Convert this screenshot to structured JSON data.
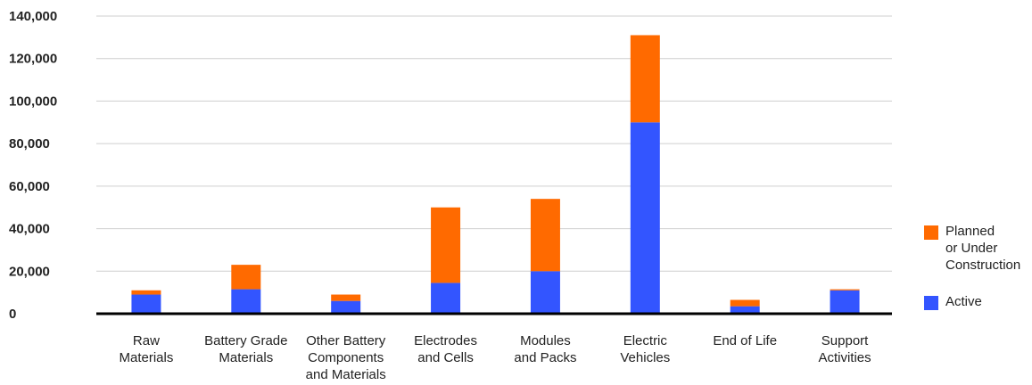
{
  "chart_data": {
    "type": "bar",
    "stacked": true,
    "categories": [
      [
        "Raw",
        "Materials"
      ],
      [
        "Battery Grade",
        "Materials"
      ],
      [
        "Other Battery",
        "Components",
        "and Materials"
      ],
      [
        "Electrodes",
        "and Cells"
      ],
      [
        "Modules",
        "and Packs"
      ],
      [
        "Electric",
        "Vehicles"
      ],
      [
        "End of Life"
      ],
      [
        "Support",
        "Activities"
      ]
    ],
    "series": [
      {
        "name": "Active",
        "color": "#3355ff",
        "values": [
          9000,
          11500,
          6000,
          14500,
          20000,
          90000,
          3500,
          11000
        ]
      },
      {
        "name": "Planned or Under Construction",
        "color": "#ff6a00",
        "values": [
          2000,
          11500,
          3000,
          35500,
          34000,
          41000,
          3000,
          500
        ]
      }
    ],
    "y_ticks": [
      "0",
      "20,000",
      "40,000",
      "60,000",
      "80,000",
      "100,000",
      "120,000",
      "140,000"
    ],
    "ylim": [
      0,
      140000
    ],
    "grid": true,
    "legend_position": "right"
  },
  "legend": {
    "planned_lines": [
      "Planned",
      "or Under",
      "Construction"
    ],
    "active_label": "Active",
    "planned_color": "#ff6a00",
    "active_color": "#3355ff"
  }
}
